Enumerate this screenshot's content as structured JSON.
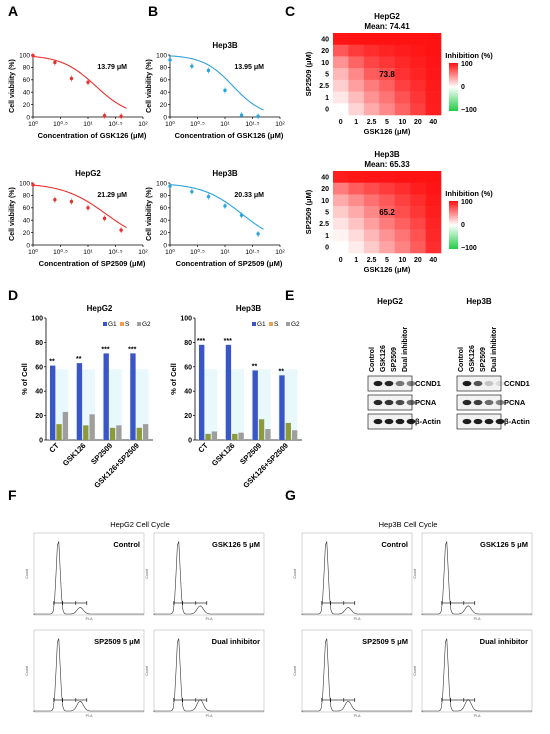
{
  "panel_letters": [
    "A",
    "B",
    "C",
    "D",
    "E",
    "F",
    "G"
  ],
  "colors": {
    "red_line": "#e8312f",
    "blue_line": "#2ea3d9",
    "g1_bar": "#3a55c6",
    "s_bar": "#f0a04b",
    "g2_bar": "#9e9e9e",
    "star_bar": "#8c9a3a",
    "heat_low": "#ffffff",
    "heat_high": "#ff1010",
    "heat_neg": "#22cc44",
    "shade": "#d8f3fb"
  },
  "panelA": {
    "top": {
      "title": "",
      "ylabel": "Cell viability (%)",
      "xlabel": "Concentration of GSK126 (μM)",
      "ic50": "13.79 μM",
      "yticks": [
        "0",
        "20",
        "40",
        "60",
        "80",
        "100"
      ],
      "xticks": [
        "10⁰",
        "10⁰·⁵",
        "10¹",
        "10¹·⁵",
        "10²"
      ]
    },
    "bottom": {
      "title": "HepG2",
      "ylabel": "Cell viability (%)",
      "xlabel": "Concentration of SP2509 (μM)",
      "ic50": "21.29 μM",
      "yticks": [
        "0",
        "20",
        "40",
        "60",
        "80",
        "100"
      ],
      "xticks": [
        "10⁰",
        "10⁰·⁵",
        "10¹",
        "10¹·⁵",
        "10²"
      ]
    }
  },
  "panelB": {
    "top": {
      "title": "Hep3B",
      "ylabel": "Cell viability (%)",
      "xlabel": "Concentration of GSK126 (μM)",
      "ic50": "13.95 μM",
      "yticks": [
        "0",
        "20",
        "40",
        "60",
        "80",
        "100"
      ],
      "xticks": [
        "10⁰",
        "10⁰·⁵",
        "10¹",
        "10¹·⁵",
        "10²"
      ]
    },
    "bottom": {
      "title": "Hep3B",
      "ylabel": "Cell viability (%)",
      "xlabel": "Concentration of SP2509 (μM)",
      "ic50": "20.33 μM",
      "yticks": [
        "0",
        "20",
        "40",
        "60",
        "80",
        "100"
      ],
      "xticks": [
        "10⁰",
        "10⁰·⁵",
        "10¹",
        "10¹·⁵",
        "10²"
      ]
    }
  },
  "panelC": {
    "top": {
      "title": "HepG2",
      "mean": "Mean: 74.41",
      "center": "73.8"
    },
    "bottom": {
      "title": "Hep3B",
      "mean": "Mean: 65.33",
      "center": "65.2"
    },
    "ylabel": "SP2509 (μM)",
    "xlabel": "GSK126 (μM)",
    "yticks": [
      "40",
      "20",
      "10",
      "5",
      "2.5",
      "1",
      "0"
    ],
    "xticks": [
      "0",
      "1",
      "2.5",
      "5",
      "10",
      "20",
      "40"
    ],
    "legend_title": "Inhibition (%)",
    "legend_ticks": [
      "100",
      "0",
      "−100"
    ]
  },
  "panelD": {
    "hepg2_title": "HepG2",
    "hep3b_title": "Hep3B",
    "ylabel": "% of Cell",
    "yticks": [
      "0",
      "20",
      "40",
      "60",
      "80",
      "100"
    ],
    "legend": [
      "G1",
      "S",
      "G2"
    ],
    "categories": [
      "CT",
      "GSK126",
      "SP2509",
      "GSK126+SP2509"
    ],
    "hepg2_stars": [
      "**",
      "**",
      "***",
      "***"
    ],
    "hep3b_stars": [
      "***",
      "***",
      "**",
      "**"
    ]
  },
  "panelE": {
    "hepg2_title": "HepG2",
    "hep3b_title": "Hep3B",
    "lanes": [
      "Control",
      "GSK126",
      "SP2509",
      "Dual inhibitor"
    ],
    "bands": [
      "CCND1",
      "PCNA",
      "β-Actin"
    ]
  },
  "panelF": {
    "title": "HepG2 Cell Cycle",
    "subs": [
      "Control",
      "GSK126 5 μM",
      "SP2509 5 μM",
      "Dual inhibitor"
    ]
  },
  "panelG": {
    "title": "Hep3B Cell Cycle",
    "subs": [
      "Control",
      "GSK126 5 μM",
      "SP2509 5 μM",
      "Dual inhibitor"
    ]
  },
  "chart_data": [
    {
      "type": "scatter",
      "title": "",
      "xlabel": "Concentration of GSK126 (μM)",
      "ylabel": "Cell viability (%)",
      "x_scale": "log",
      "xlim": [
        1,
        100
      ],
      "ylim": [
        0,
        100
      ],
      "series": [
        {
          "x": [
            1,
            2.5,
            5,
            10,
            20,
            40
          ],
          "y": [
            99,
            88,
            62,
            56,
            2,
            1
          ]
        }
      ]
    },
    {
      "type": "scatter",
      "title": "Hep3B",
      "xlabel": "Concentration of GSK126 (μM)",
      "ylabel": "Cell viability (%)",
      "x_scale": "log",
      "xlim": [
        1,
        100
      ],
      "ylim": [
        0,
        100
      ],
      "series": [
        {
          "x": [
            1,
            2.5,
            5,
            10,
            20,
            40
          ],
          "y": [
            92,
            82,
            75,
            43,
            3,
            1
          ]
        }
      ]
    },
    {
      "type": "scatter",
      "title": "HepG2",
      "xlabel": "Concentration of SP2509 (μM)",
      "ylabel": "Cell viability (%)",
      "x_scale": "log",
      "xlim": [
        1,
        100
      ],
      "ylim": [
        0,
        100
      ],
      "series": [
        {
          "x": [
            1,
            2.5,
            5,
            10,
            20,
            40
          ],
          "y": [
            97,
            73,
            70,
            60,
            43,
            24
          ]
        }
      ]
    },
    {
      "type": "scatter",
      "title": "Hep3B",
      "xlabel": "Concentration of SP2509 (μM)",
      "ylabel": "Cell viability (%)",
      "x_scale": "log",
      "xlim": [
        1,
        100
      ],
      "ylim": [
        0,
        100
      ],
      "series": [
        {
          "x": [
            1,
            2.5,
            5,
            10,
            20,
            40
          ],
          "y": [
            95,
            86,
            78,
            63,
            48,
            18
          ]
        }
      ]
    },
    {
      "type": "heatmap",
      "title": "HepG2",
      "xlabel": "GSK126 (μM)",
      "ylabel": "SP2509 (μM)",
      "x_categories": [
        "0",
        "1",
        "2.5",
        "5",
        "10",
        "20",
        "40"
      ],
      "y_categories": [
        "40",
        "20",
        "10",
        "5",
        "2.5",
        "1",
        "0"
      ],
      "values": [
        [
          98,
          99,
          99,
          99,
          99,
          99,
          99
        ],
        [
          70,
          82,
          88,
          92,
          95,
          97,
          99
        ],
        [
          45,
          65,
          78,
          84,
          90,
          94,
          98
        ],
        [
          30,
          50,
          68,
          74,
          86,
          92,
          97
        ],
        [
          20,
          40,
          55,
          66,
          80,
          88,
          96
        ],
        [
          10,
          28,
          45,
          58,
          72,
          84,
          95
        ],
        [
          0,
          18,
          35,
          50,
          65,
          80,
          94
        ]
      ]
    },
    {
      "type": "heatmap",
      "title": "Hep3B",
      "xlabel": "GSK126 (μM)",
      "ylabel": "SP2509 (μM)",
      "x_categories": [
        "0",
        "1",
        "2.5",
        "5",
        "10",
        "20",
        "40"
      ],
      "y_categories": [
        "40",
        "20",
        "10",
        "5",
        "2.5",
        "1",
        "0"
      ],
      "values": [
        [
          95,
          97,
          98,
          98,
          99,
          99,
          99
        ],
        [
          55,
          68,
          75,
          82,
          88,
          94,
          98
        ],
        [
          35,
          48,
          60,
          70,
          80,
          88,
          96
        ],
        [
          22,
          35,
          50,
          65,
          74,
          84,
          94
        ],
        [
          12,
          25,
          40,
          55,
          66,
          78,
          92
        ],
        [
          5,
          15,
          30,
          45,
          58,
          72,
          90
        ],
        [
          0,
          8,
          22,
          38,
          52,
          68,
          88
        ]
      ]
    },
    {
      "type": "bar",
      "title": "HepG2",
      "ylabel": "% of Cell",
      "ylim": [
        0,
        100
      ],
      "categories": [
        "CT",
        "GSK126",
        "SP2509",
        "GSK126+SP2509"
      ],
      "series": [
        {
          "name": "G1",
          "values": [
            61,
            63,
            71,
            71
          ]
        },
        {
          "name": "S",
          "values": [
            13,
            12,
            10,
            10
          ]
        },
        {
          "name": "G2",
          "values": [
            23,
            21,
            12,
            13
          ]
        }
      ]
    },
    {
      "type": "bar",
      "title": "Hep3B",
      "ylabel": "% of Cell",
      "ylim": [
        0,
        100
      ],
      "categories": [
        "CT",
        "GSK126",
        "SP2509",
        "GSK126+SP2509"
      ],
      "series": [
        {
          "name": "G1",
          "values": [
            78,
            78,
            57,
            53
          ]
        },
        {
          "name": "S",
          "values": [
            5,
            5,
            17,
            14
          ]
        },
        {
          "name": "G2",
          "values": [
            7,
            6,
            9,
            8
          ]
        }
      ]
    }
  ]
}
